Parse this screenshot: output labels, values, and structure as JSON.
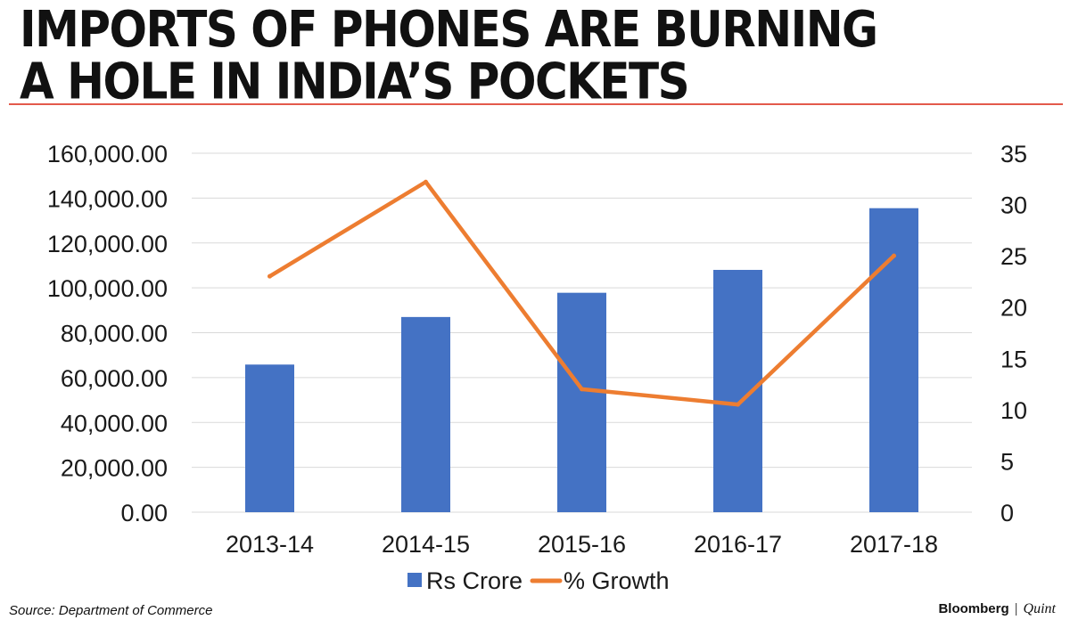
{
  "header": {
    "title_line1": "IMPORTS OF PHONES ARE BURNING",
    "title_line2": "A HOLE IN INDIA’S POCKETS"
  },
  "footer": {
    "source": "Source: Department of Commerce",
    "brand": "Bloomberg",
    "brand_separator": "|",
    "brand_sub": "Quint"
  },
  "colors": {
    "accent_rule": "#e35a4b",
    "bar": "#4472c4",
    "line": "#ed7d31",
    "line_highlight": "#a5a53a",
    "grid": "#d9d9d9"
  },
  "chart_data": {
    "type": "bar",
    "categories": [
      "2013-14",
      "2014-15",
      "2015-16",
      "2016-17",
      "2017-18"
    ],
    "series": [
      {
        "name": "Rs Crore",
        "type": "bar",
        "axis": "left",
        "values": [
          65800,
          87000,
          97800,
          108000,
          135500
        ]
      },
      {
        "name": "% Growth",
        "type": "line",
        "axis": "right",
        "values": [
          23,
          32.2,
          12,
          10.5,
          25
        ]
      }
    ],
    "y_left": {
      "min": 0,
      "max": 160000,
      "ticks": [
        "0.00",
        "20,000.00",
        "40,000.00",
        "60,000.00",
        "80,000.00",
        "100,000.00",
        "120,000.00",
        "140,000.00",
        "160,000.00"
      ]
    },
    "y_right": {
      "min": 0,
      "max": 35,
      "ticks": [
        "0",
        "5",
        "10",
        "15",
        "20",
        "25",
        "30",
        "35"
      ]
    },
    "grid": true,
    "legend_position": "bottom"
  }
}
